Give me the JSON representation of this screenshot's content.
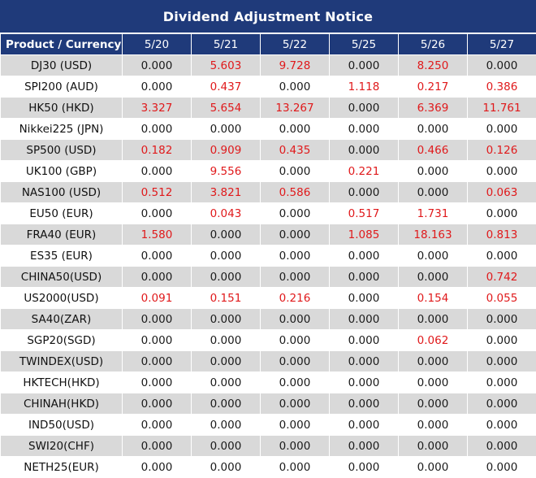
{
  "title": "Dividend Adjustment Notice",
  "header": {
    "product_label": "Product / Currency",
    "dates": [
      "5/20",
      "5/21",
      "5/22",
      "5/25",
      "5/26",
      "5/27"
    ]
  },
  "colors": {
    "header_bg": "#1f3a7a",
    "positive_value": "#e0191b",
    "zebra": "#d9d9d9"
  },
  "rows": [
    {
      "product": "DJ30 (USD)",
      "values": [
        "0.000",
        "5.603",
        "9.728",
        "0.000",
        "8.250",
        "0.000"
      ]
    },
    {
      "product": "SPI200 (AUD)",
      "values": [
        "0.000",
        "0.437",
        "0.000",
        "1.118",
        "0.217",
        "0.386"
      ]
    },
    {
      "product": "HK50 (HKD)",
      "values": [
        "3.327",
        "5.654",
        "13.267",
        "0.000",
        "6.369",
        "11.761"
      ]
    },
    {
      "product": "Nikkei225 (JPN)",
      "values": [
        "0.000",
        "0.000",
        "0.000",
        "0.000",
        "0.000",
        "0.000"
      ]
    },
    {
      "product": "SP500 (USD)",
      "values": [
        "0.182",
        "0.909",
        "0.435",
        "0.000",
        "0.466",
        "0.126"
      ]
    },
    {
      "product": "UK100 (GBP)",
      "values": [
        "0.000",
        "9.556",
        "0.000",
        "0.221",
        "0.000",
        "0.000"
      ]
    },
    {
      "product": "NAS100 (USD)",
      "values": [
        "0.512",
        "3.821",
        "0.586",
        "0.000",
        "0.000",
        "0.063"
      ]
    },
    {
      "product": "EU50 (EUR)",
      "values": [
        "0.000",
        "0.043",
        "0.000",
        "0.517",
        "1.731",
        "0.000"
      ]
    },
    {
      "product": "FRA40 (EUR)",
      "values": [
        "1.580",
        "0.000",
        "0.000",
        "1.085",
        "18.163",
        "0.813"
      ]
    },
    {
      "product": "ES35 (EUR)",
      "values": [
        "0.000",
        "0.000",
        "0.000",
        "0.000",
        "0.000",
        "0.000"
      ]
    },
    {
      "product": "CHINA50(USD)",
      "values": [
        "0.000",
        "0.000",
        "0.000",
        "0.000",
        "0.000",
        "0.742"
      ]
    },
    {
      "product": "US2000(USD)",
      "values": [
        "0.091",
        "0.151",
        "0.216",
        "0.000",
        "0.154",
        "0.055"
      ]
    },
    {
      "product": "SA40(ZAR)",
      "values": [
        "0.000",
        "0.000",
        "0.000",
        "0.000",
        "0.000",
        "0.000"
      ]
    },
    {
      "product": "SGP20(SGD)",
      "values": [
        "0.000",
        "0.000",
        "0.000",
        "0.000",
        "0.062",
        "0.000"
      ]
    },
    {
      "product": "TWINDEX(USD)",
      "values": [
        "0.000",
        "0.000",
        "0.000",
        "0.000",
        "0.000",
        "0.000"
      ]
    },
    {
      "product": "HKTECH(HKD)",
      "values": [
        "0.000",
        "0.000",
        "0.000",
        "0.000",
        "0.000",
        "0.000"
      ]
    },
    {
      "product": "CHINAH(HKD)",
      "values": [
        "0.000",
        "0.000",
        "0.000",
        "0.000",
        "0.000",
        "0.000"
      ]
    },
    {
      "product": "IND50(USD)",
      "values": [
        "0.000",
        "0.000",
        "0.000",
        "0.000",
        "0.000",
        "0.000"
      ]
    },
    {
      "product": "SWI20(CHF)",
      "values": [
        "0.000",
        "0.000",
        "0.000",
        "0.000",
        "0.000",
        "0.000"
      ]
    },
    {
      "product": "NETH25(EUR)",
      "values": [
        "0.000",
        "0.000",
        "0.000",
        "0.000",
        "0.000",
        "0.000"
      ]
    }
  ]
}
